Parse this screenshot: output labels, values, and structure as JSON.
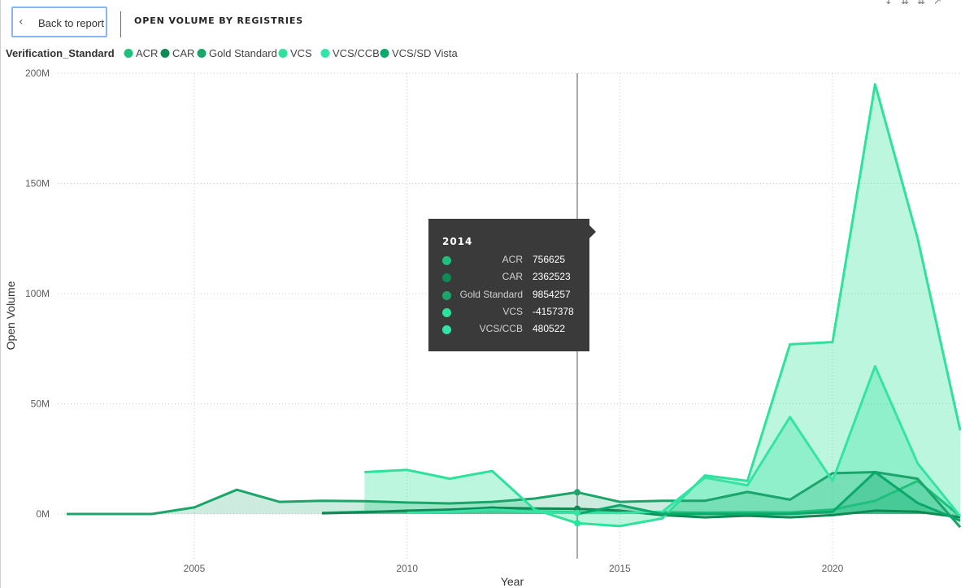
{
  "header": {
    "back_label": "Back to report",
    "title": "OPEN VOLUME BY REGISTRIES"
  },
  "chart_data": {
    "type": "area",
    "xlabel": "Year",
    "ylabel": "Open Volume",
    "legend_title": "Verification_Standard",
    "legend_position": "top-left",
    "grid": true,
    "xlim": [
      2001.7,
      2023.2
    ],
    "ylim": [
      -20000000,
      200000000
    ],
    "x_ticks": [
      {
        "v": 2005,
        "label": "2005"
      },
      {
        "v": 2010,
        "label": "2010"
      },
      {
        "v": 2015,
        "label": "2015"
      },
      {
        "v": 2020,
        "label": "2020"
      }
    ],
    "y_ticks": [
      {
        "v": 0,
        "label": "0M"
      },
      {
        "v": 50000000,
        "label": "50M"
      },
      {
        "v": 100000000,
        "label": "100M"
      },
      {
        "v": 150000000,
        "label": "150M"
      },
      {
        "v": 200000000,
        "label": "200M"
      }
    ],
    "series": [
      {
        "name": "ACR",
        "color": "#1fc07e",
        "fill_opacity": 0.22,
        "points": [
          [
            2008,
            500000
          ],
          [
            2009,
            1000000
          ],
          [
            2010,
            1200000
          ],
          [
            2011,
            1500000
          ],
          [
            2012,
            3000000
          ],
          [
            2013,
            1200000
          ],
          [
            2014,
            756625
          ],
          [
            2015,
            500000
          ],
          [
            2016,
            800000
          ],
          [
            2017,
            600000
          ],
          [
            2018,
            800000
          ],
          [
            2019,
            700000
          ],
          [
            2020,
            2000000
          ],
          [
            2021,
            6000000
          ],
          [
            2022,
            15000000
          ],
          [
            2023,
            -1000000
          ]
        ]
      },
      {
        "name": "CAR",
        "color": "#0f8a55",
        "fill_opacity": 0.22,
        "points": [
          [
            2008,
            300000
          ],
          [
            2009,
            800000
          ],
          [
            2010,
            1500000
          ],
          [
            2011,
            2000000
          ],
          [
            2012,
            2800000
          ],
          [
            2013,
            2500000
          ],
          [
            2014,
            2362523
          ],
          [
            2015,
            1500000
          ],
          [
            2016,
            -500000
          ],
          [
            2017,
            -1500000
          ],
          [
            2018,
            -800000
          ],
          [
            2019,
            -1500000
          ],
          [
            2020,
            -500000
          ],
          [
            2021,
            1500000
          ],
          [
            2022,
            1000000
          ],
          [
            2023,
            -1500000
          ]
        ]
      },
      {
        "name": "Gold Standard",
        "color": "#1ba56a",
        "fill_opacity": 0.22,
        "points": [
          [
            2002,
            0
          ],
          [
            2003,
            0
          ],
          [
            2004,
            0
          ],
          [
            2005,
            3000000
          ],
          [
            2006,
            11000000
          ],
          [
            2007,
            5500000
          ],
          [
            2008,
            6000000
          ],
          [
            2009,
            5800000
          ],
          [
            2010,
            5200000
          ],
          [
            2011,
            4800000
          ],
          [
            2012,
            5500000
          ],
          [
            2013,
            7000000
          ],
          [
            2014,
            9854257
          ],
          [
            2015,
            5500000
          ],
          [
            2016,
            6000000
          ],
          [
            2017,
            6000000
          ],
          [
            2018,
            10000000
          ],
          [
            2019,
            6500000
          ],
          [
            2020,
            18500000
          ],
          [
            2021,
            19000000
          ],
          [
            2022,
            16000000
          ],
          [
            2023,
            -6000000
          ]
        ]
      },
      {
        "name": "VCS",
        "color": "#2ee29b",
        "fill_opacity": 0.32,
        "points": [
          [
            2009,
            19000000
          ],
          [
            2010,
            20000000
          ],
          [
            2011,
            16000000
          ],
          [
            2012,
            19500000
          ],
          [
            2013,
            2000000
          ],
          [
            2014,
            -4157378
          ],
          [
            2015,
            -5500000
          ],
          [
            2016,
            -2000000
          ],
          [
            2017,
            17500000
          ],
          [
            2018,
            15000000
          ],
          [
            2019,
            77000000
          ],
          [
            2020,
            78000000
          ],
          [
            2021,
            195000000
          ],
          [
            2022,
            125000000
          ],
          [
            2023,
            38000000
          ]
        ]
      },
      {
        "name": "VCS/CCB",
        "color": "#35e3a6",
        "fill_opacity": 0.32,
        "points": [
          [
            2010,
            500000
          ],
          [
            2011,
            1000000
          ],
          [
            2012,
            2000000
          ],
          [
            2013,
            1000000
          ],
          [
            2014,
            480522
          ],
          [
            2015,
            500000
          ],
          [
            2016,
            1000000
          ],
          [
            2017,
            16500000
          ],
          [
            2018,
            13000000
          ],
          [
            2019,
            44000000
          ],
          [
            2020,
            15000000
          ],
          [
            2021,
            67000000
          ],
          [
            2022,
            23000000
          ],
          [
            2023,
            -1000000
          ]
        ]
      },
      {
        "name": "VCS/SD Vista",
        "color": "#0aa86a",
        "fill_opacity": 0.3,
        "points": [
          [
            2014,
            0
          ],
          [
            2015,
            4000000
          ],
          [
            2016,
            0
          ],
          [
            2017,
            0
          ],
          [
            2018,
            0
          ],
          [
            2019,
            0
          ],
          [
            2020,
            1000000
          ],
          [
            2021,
            19000000
          ],
          [
            2022,
            5000000
          ],
          [
            2023,
            -3000000
          ]
        ]
      }
    ],
    "crosshair_x": 2014,
    "tooltip": {
      "title": "2014",
      "rows": [
        {
          "name": "ACR",
          "value": "756625",
          "color": "#1fc07e"
        },
        {
          "name": "CAR",
          "value": "2362523",
          "color": "#0f8a55"
        },
        {
          "name": "Gold Standard",
          "value": "9854257",
          "color": "#1ba56a"
        },
        {
          "name": "VCS",
          "value": "-4157378",
          "color": "#2ee29b"
        },
        {
          "name": "VCS/CCB",
          "value": "480522",
          "color": "#35e3a6"
        }
      ]
    }
  }
}
